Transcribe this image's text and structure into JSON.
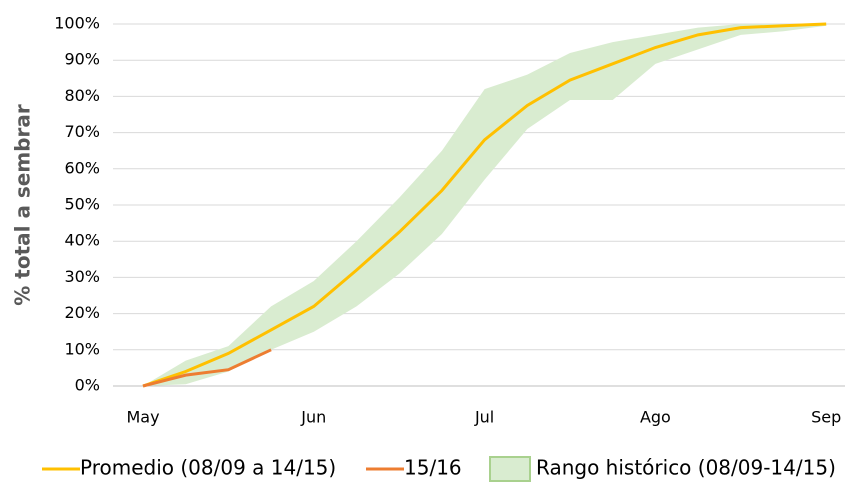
{
  "chart_data": {
    "type": "line",
    "y_label": "% total a sembrar",
    "categories": [
      "May",
      null,
      null,
      null,
      "Jun",
      null,
      null,
      null,
      "Jul",
      null,
      null,
      null,
      "Ago",
      null,
      null,
      null,
      "Sep"
    ],
    "series": [
      {
        "name": "Promedio (08/09 a 14/15)",
        "color": "#ffc000",
        "values": [
          0,
          4,
          9,
          15.5,
          22,
          32,
          42.5,
          54,
          68,
          77.5,
          84.5,
          89,
          93.5,
          97,
          99,
          99.5,
          100
        ]
      },
      {
        "name": "15/16",
        "color": "#ed7d31",
        "values": [
          0,
          3,
          4.5,
          10,
          null,
          null,
          null,
          null,
          null,
          null,
          null,
          null,
          null,
          null,
          null,
          null,
          null
        ]
      }
    ],
    "band": {
      "name": "Rango histórico (08/09-14/15)",
      "color": "#d9ecd0",
      "border": "#a9d18e",
      "low": [
        0,
        0.5,
        4,
        10,
        15,
        22,
        31,
        42,
        57,
        71,
        79,
        79,
        89,
        93,
        97,
        98,
        99.5
      ],
      "high": [
        0,
        7,
        11,
        22,
        29,
        40,
        52,
        65,
        82,
        86,
        92,
        95,
        97,
        99,
        100,
        100,
        100
      ]
    },
    "ylim": [
      0,
      100
    ],
    "yticks": [
      {
        "value": 0,
        "label": "0%"
      },
      {
        "value": 10,
        "label": "10%"
      },
      {
        "value": 20,
        "label": "20%"
      },
      {
        "value": 30,
        "label": "30%"
      },
      {
        "value": 40,
        "label": "40%"
      },
      {
        "value": 50,
        "label": "50%"
      },
      {
        "value": 60,
        "label": "60%"
      },
      {
        "value": 70,
        "label": "70%"
      },
      {
        "value": 80,
        "label": "80%"
      },
      {
        "value": 90,
        "label": "90%"
      },
      {
        "value": 100,
        "label": "100%"
      }
    ],
    "grid": true
  }
}
